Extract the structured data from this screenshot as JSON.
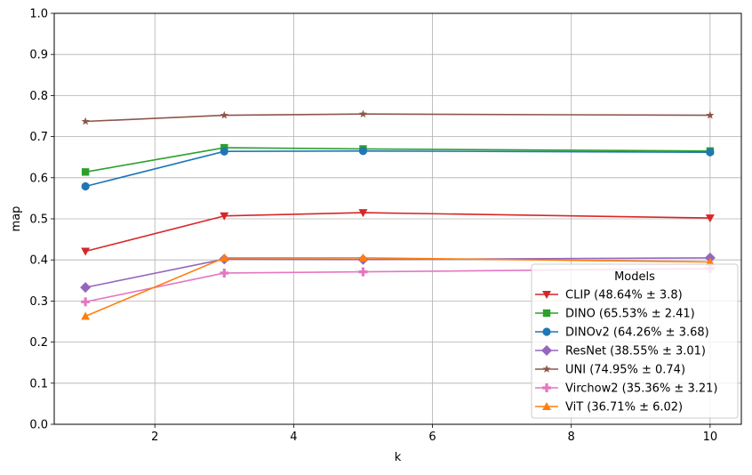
{
  "chart_data": {
    "type": "line",
    "title": "",
    "xlabel": "k",
    "ylabel": "map",
    "x": [
      1,
      3,
      5,
      10
    ],
    "xlim": [
      0.55,
      10.45
    ],
    "ylim": [
      0.0,
      1.0
    ],
    "xticks": [
      2,
      4,
      6,
      8,
      10
    ],
    "yticks": [
      0.0,
      0.1,
      0.2,
      0.3,
      0.4,
      0.5,
      0.6,
      0.7,
      0.8,
      0.9,
      1.0
    ],
    "xtick_labels": [
      "2",
      "4",
      "6",
      "8",
      "10"
    ],
    "ytick_labels": [
      "0.0",
      "0.1",
      "0.2",
      "0.3",
      "0.4",
      "0.5",
      "0.6",
      "0.7",
      "0.8",
      "0.9",
      "1.0"
    ],
    "grid": true,
    "legend": {
      "title": "Models",
      "placement": "lower-right"
    },
    "series": [
      {
        "name": "CLIP (48.64% ± 3.8)",
        "values": [
          0.421,
          0.507,
          0.515,
          0.502
        ],
        "color": "#d62728",
        "marker": "triangle-down"
      },
      {
        "name": "DINO (65.53% ± 2.41)",
        "values": [
          0.614,
          0.673,
          0.67,
          0.665
        ],
        "color": "#2ca02c",
        "marker": "square"
      },
      {
        "name": "DINOv2 (64.26% ± 3.68)",
        "values": [
          0.579,
          0.664,
          0.665,
          0.662
        ],
        "color": "#1f77b4",
        "marker": "circle"
      },
      {
        "name": "ResNet (38.55% ± 3.01)",
        "values": [
          0.333,
          0.402,
          0.401,
          0.405
        ],
        "color": "#9467bd",
        "marker": "diamond"
      },
      {
        "name": "UNI (74.95% ± 0.74)",
        "values": [
          0.737,
          0.752,
          0.755,
          0.752
        ],
        "color": "#8c564b",
        "marker": "star"
      },
      {
        "name": "Virchow2 (35.36% ± 3.21)",
        "values": [
          0.298,
          0.368,
          0.371,
          0.379
        ],
        "color": "#e377c2",
        "marker": "plus"
      },
      {
        "name": "ViT (36.71% ± 6.02)",
        "values": [
          0.263,
          0.405,
          0.405,
          0.395
        ],
        "color": "#ff7f0e",
        "marker": "triangle-up"
      }
    ]
  }
}
